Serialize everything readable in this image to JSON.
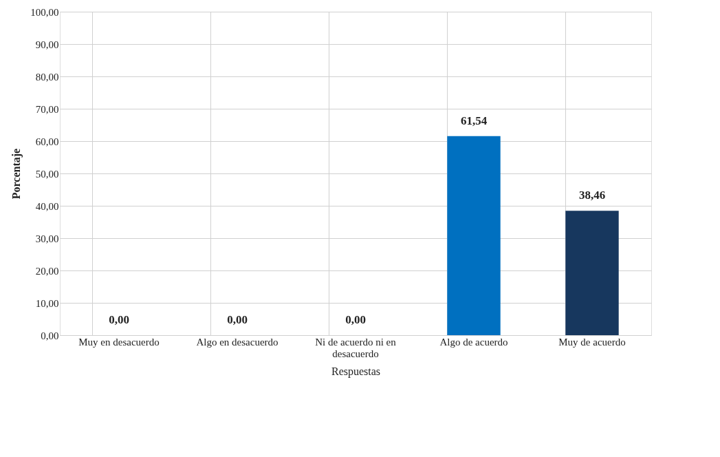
{
  "chart_data": {
    "type": "bar",
    "xlabel": "Respuestas",
    "ylabel": "Porcentaje",
    "categories": [
      "Muy en desacuerdo",
      "Algo en desacuerdo",
      "Ni de acuerdo ni en desacuerdo",
      "Algo de acuerdo",
      "Muy de acuerdo"
    ],
    "values": [
      0,
      0,
      0,
      61.54,
      38.46
    ],
    "colors": [
      "#0070c0",
      "#0070c0",
      "#0070c0",
      "#0070c0",
      "#17375e"
    ],
    "value_labels": [
      "0,00",
      "0,00",
      "0,00",
      "61,54",
      "38,46"
    ],
    "ylim": [
      0,
      100
    ],
    "yticks": [
      {
        "value": 0,
        "label": "0,00"
      },
      {
        "value": 10,
        "label": "10,00"
      },
      {
        "value": 20,
        "label": "20,00"
      },
      {
        "value": 30,
        "label": "30,00"
      },
      {
        "value": 40,
        "label": "40,00"
      },
      {
        "value": 50,
        "label": "50,00"
      },
      {
        "value": 60,
        "label": "60,00"
      },
      {
        "value": 70,
        "label": "70,00"
      },
      {
        "value": 80,
        "label": "80,00"
      },
      {
        "value": 90,
        "label": "90,00"
      },
      {
        "value": 100,
        "label": "100,00"
      }
    ],
    "grid": true
  }
}
